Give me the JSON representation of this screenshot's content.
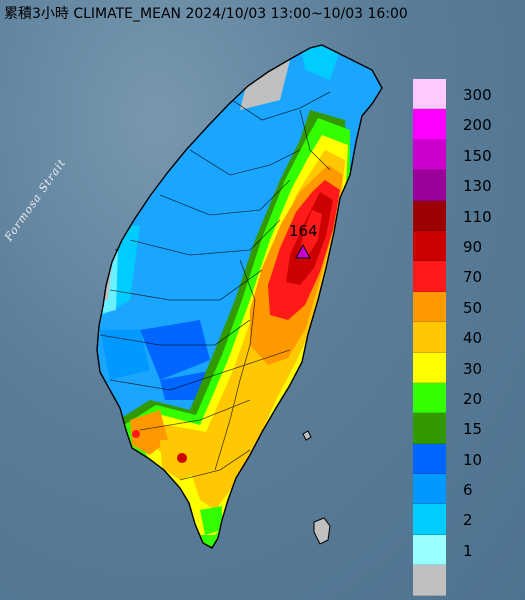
{
  "title": "累積3小時 CLIMATE_MEAN 2024/10/03 13:00~10/03 16:00",
  "map": {
    "water_label": "Formosa Strait",
    "peak_value": "164",
    "peak_marker_color": "#c800d0",
    "colors": {
      "sea": "#5a7d98",
      "island_outline": "#000000"
    }
  },
  "legend": {
    "unit_visible": false,
    "items": [
      {
        "label": "300",
        "color": "#ffc8ff"
      },
      {
        "label": "200",
        "color": "#ff00ff"
      },
      {
        "label": "150",
        "color": "#cc00cc"
      },
      {
        "label": "130",
        "color": "#9a009a"
      },
      {
        "label": "110",
        "color": "#9c0000"
      },
      {
        "label": "90",
        "color": "#cc0000"
      },
      {
        "label": "70",
        "color": "#ff1a1a"
      },
      {
        "label": "50",
        "color": "#ff9900"
      },
      {
        "label": "40",
        "color": "#ffc800"
      },
      {
        "label": "30",
        "color": "#ffff00"
      },
      {
        "label": "20",
        "color": "#33ff00"
      },
      {
        "label": "15",
        "color": "#339900"
      },
      {
        "label": "10",
        "color": "#0066ff"
      },
      {
        "label": "6",
        "color": "#0099ff"
      },
      {
        "label": "2",
        "color": "#00ccff"
      },
      {
        "label": "1",
        "color": "#99ffff"
      },
      {
        "label": "",
        "color": "#c0c0c0"
      }
    ]
  }
}
